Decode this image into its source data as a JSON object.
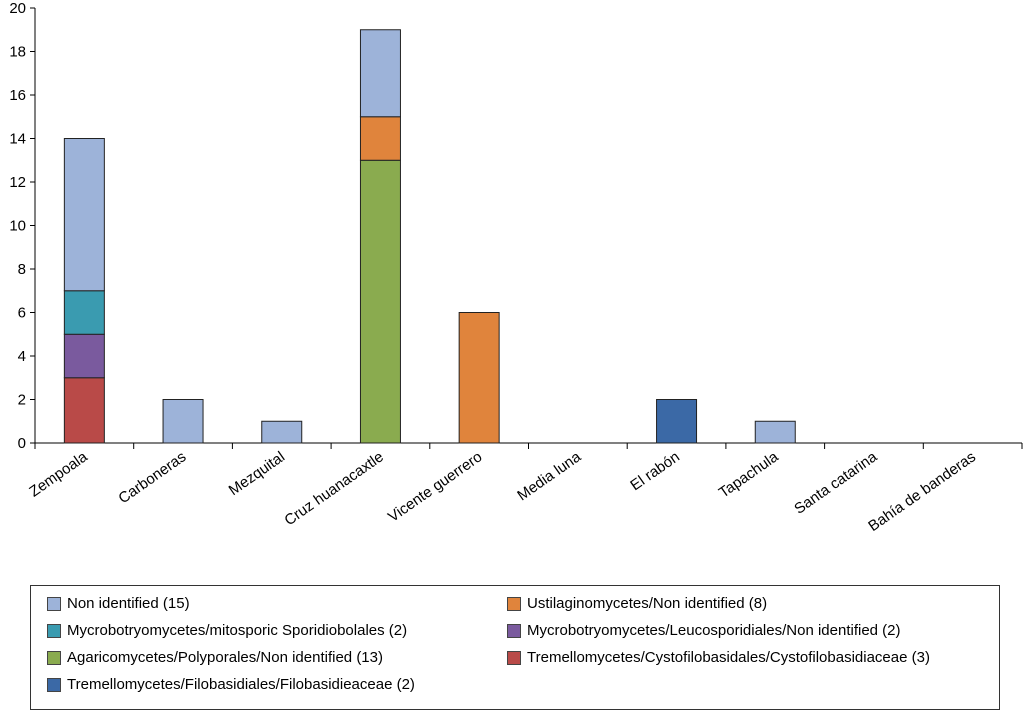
{
  "chart_data": {
    "type": "bar",
    "stacked": true,
    "title": "",
    "xlabel": "",
    "ylabel": "",
    "ylim": [
      0,
      20
    ],
    "yticks": [
      0,
      2,
      4,
      6,
      8,
      10,
      12,
      14,
      16,
      18,
      20
    ],
    "categories": [
      "Zempoala",
      "Carboneras",
      "Mezquital",
      "Cruz huanacaxtle",
      "Vicente guerrero",
      "Media luna",
      "El rabón",
      "Tapachula",
      "Santa catarina",
      "Bahía de banderas"
    ],
    "series": [
      {
        "name": "Tremellomycetes/Cystofilobasidales/Cystofilobasidiaceae (3)",
        "color": "#b94a48",
        "values": [
          3,
          0,
          0,
          0,
          0,
          0,
          0,
          0,
          0,
          0
        ]
      },
      {
        "name": "Mycrobotryomycetes/Leucosporidiales/Non identified (2)",
        "color": "#7a5a9e",
        "values": [
          2,
          0,
          0,
          0,
          0,
          0,
          0,
          0,
          0,
          0
        ]
      },
      {
        "name": "Mycrobotryomycetes/mitosporic Sporidiobolales (2)",
        "color": "#3a9bb0",
        "values": [
          2,
          0,
          0,
          0,
          0,
          0,
          0,
          0,
          0,
          0
        ]
      },
      {
        "name": "Agaricomycetes/Polyporales/Non identified (13)",
        "color": "#8aab4f",
        "values": [
          0,
          0,
          0,
          13,
          0,
          0,
          0,
          0,
          0,
          0
        ]
      },
      {
        "name": "Ustilaginomycetes/Non identified (8)",
        "color": "#e0843c",
        "values": [
          0,
          0,
          0,
          2,
          6,
          0,
          0,
          0,
          0,
          0
        ]
      },
      {
        "name": "Tremellomycetes/Filobasidiales/Filobasidieaceae (2)",
        "color": "#3b69a6",
        "values": [
          0,
          0,
          0,
          0,
          0,
          0,
          2,
          0,
          0,
          0
        ]
      },
      {
        "name": "Non identified (15)",
        "color": "#9db3d9",
        "values": [
          7,
          2,
          1,
          4,
          0,
          0,
          0,
          1,
          0,
          0
        ]
      }
    ],
    "legend": {
      "placement": "bottom",
      "order": [
        "Non identified (15)",
        "Ustilaginomycetes/Non identified (8)",
        "Mycrobotryomycetes/mitosporic Sporidiobolales (2)",
        "Mycrobotryomycetes/Leucosporidiales/Non identified (2)",
        "Agaricomycetes/Polyporales/Non identified (13)",
        "Tremellomycetes/Cystofilobasidales/Cystofilobasidiaceae (3)",
        "Tremellomycetes/Filobasidiales/Filobasidieaceae (2)"
      ]
    }
  }
}
